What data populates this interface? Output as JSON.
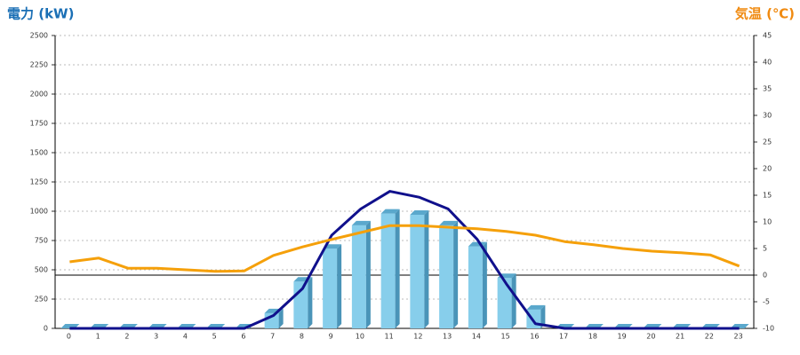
{
  "chart_data": {
    "type": "bar",
    "title_left": "電力 (kW)",
    "title_right": "気温 (℃)",
    "categories": [
      "0",
      "1",
      "2",
      "3",
      "4",
      "5",
      "6",
      "7",
      "8",
      "9",
      "10",
      "11",
      "12",
      "13",
      "14",
      "15",
      "16",
      "17",
      "18",
      "19",
      "20",
      "21",
      "22",
      "23"
    ],
    "series": [
      {
        "type": "bar",
        "color": "#87ceeb",
        "values": [
          0,
          0,
          0,
          0,
          0,
          0,
          0,
          130,
          400,
          680,
          880,
          980,
          970,
          880,
          700,
          430,
          160,
          0,
          0,
          0,
          0,
          0,
          0,
          0
        ]
      },
      {
        "type": "line",
        "color": "#10108c",
        "values": [
          0,
          0,
          0,
          0,
          0,
          0,
          0,
          110,
          340,
          795,
          1020,
          1170,
          1120,
          1020,
          760,
          380,
          40,
          0,
          0,
          0,
          0,
          0,
          0,
          0
        ]
      },
      {
        "type": "line",
        "axis": "y2",
        "color": "#f5a00a",
        "values": [
          2.5,
          3.2,
          1.3,
          1.3,
          1.0,
          0.7,
          0.8,
          3.7,
          5.3,
          6.7,
          8.0,
          9.3,
          9.3,
          9.0,
          8.7,
          8.2,
          7.5,
          6.3,
          5.7,
          5.0,
          4.5,
          4.2,
          3.8,
          1.7
        ]
      }
    ],
    "ylim": [
      0,
      2500
    ],
    "yticks": [
      0,
      250,
      500,
      750,
      1000,
      1250,
      1500,
      1750,
      2000,
      2250,
      2500
    ],
    "y2lim": [
      -10,
      45
    ],
    "y2ticks": [
      -10,
      -5,
      0,
      5,
      10,
      15,
      20,
      25,
      30,
      35,
      40,
      45
    ],
    "grid": true
  }
}
